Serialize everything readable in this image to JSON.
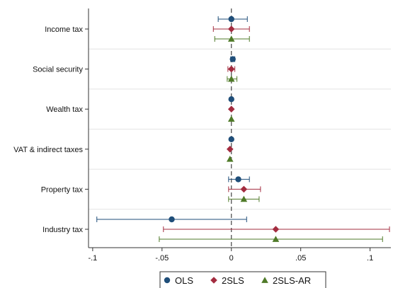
{
  "chart_data": {
    "type": "coefficient-plot",
    "orientation": "horizontal",
    "categories": [
      "Income tax",
      "Social security",
      "Wealth tax",
      "VAT & indirect taxes",
      "Property tax",
      "Industry tax"
    ],
    "x_ticks": [
      {
        "value": -0.1,
        "label": "-.1"
      },
      {
        "value": -0.05,
        "label": "-.05"
      },
      {
        "value": 0,
        "label": "0"
      },
      {
        "value": 0.05,
        "label": ".05"
      },
      {
        "value": 0.1,
        "label": ".1"
      }
    ],
    "xlim": [
      -0.103,
      0.115
    ],
    "reference_line": 0,
    "grid": "horizontal",
    "legend_position": "bottom",
    "series": [
      {
        "name": "OLS",
        "marker": "circle",
        "color": "#1f4e79",
        "points": [
          {
            "estimate": 0.0,
            "ci": [
              -0.0095,
              0.0115
            ]
          },
          {
            "estimate": 0.001,
            "ci": [
              -0.0005,
              0.0025
            ]
          },
          {
            "estimate": 0.0,
            "ci": [
              0.0,
              0.0
            ]
          },
          {
            "estimate": 0.0,
            "ci": [
              0.0,
              0.0
            ]
          },
          {
            "estimate": 0.005,
            "ci": [
              -0.002,
              0.013
            ]
          },
          {
            "estimate": -0.043,
            "ci": [
              -0.097,
              0.011
            ]
          }
        ]
      },
      {
        "name": "2SLS",
        "marker": "diamond",
        "color": "#a32c3f",
        "points": [
          {
            "estimate": 0.0,
            "ci": [
              -0.013,
              0.013
            ]
          },
          {
            "estimate": 0.0,
            "ci": [
              -0.0025,
              0.0025
            ]
          },
          {
            "estimate": 0.0,
            "ci": [
              0.0,
              0.0
            ]
          },
          {
            "estimate": -0.001,
            "ci": [
              -0.001,
              -0.001
            ]
          },
          {
            "estimate": 0.009,
            "ci": [
              -0.002,
              0.021
            ]
          },
          {
            "estimate": 0.032,
            "ci": [
              -0.049,
              0.114
            ]
          }
        ]
      },
      {
        "name": "2SLS-AR",
        "marker": "triangle",
        "color": "#4f7a28",
        "points": [
          {
            "estimate": 0.0,
            "ci": [
              -0.012,
              0.013
            ]
          },
          {
            "estimate": 0.0,
            "ci": [
              -0.003,
              0.004
            ]
          },
          {
            "estimate": 0.0,
            "ci": [
              0.0,
              0.0
            ]
          },
          {
            "estimate": -0.001,
            "ci": [
              -0.001,
              -0.001
            ]
          },
          {
            "estimate": 0.009,
            "ci": [
              -0.002,
              0.02
            ]
          },
          {
            "estimate": 0.032,
            "ci": [
              -0.052,
              0.109
            ]
          }
        ]
      }
    ]
  }
}
